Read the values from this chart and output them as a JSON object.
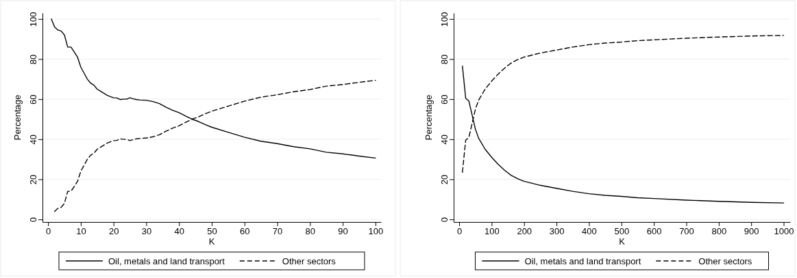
{
  "chart_data": [
    {
      "type": "line",
      "xlabel": "K",
      "ylabel": "Percentage",
      "xlim": [
        -1.7,
        101.7
      ],
      "ylim": [
        -1.3,
        103
      ],
      "xticks": [
        0,
        10,
        20,
        30,
        40,
        50,
        60,
        70,
        80,
        90,
        100
      ],
      "yticks": [
        0,
        20,
        40,
        60,
        80,
        100
      ],
      "grid": "y",
      "legend": "bottom",
      "marker": "none",
      "series": [
        {
          "name": "Oil, metals and land transport",
          "color": "#000000",
          "line_style": "solid",
          "x": [
            1,
            2,
            3,
            4,
            5,
            6,
            7,
            8,
            9,
            10,
            11,
            12,
            13,
            14,
            15,
            16,
            17,
            18,
            19,
            20,
            21,
            22,
            23,
            24,
            25,
            26,
            27,
            28,
            30,
            32,
            34,
            36,
            38,
            40,
            42,
            44,
            46,
            48,
            50,
            55,
            60,
            65,
            70,
            75,
            80,
            85,
            90,
            95,
            100
          ],
          "values": [
            100,
            96,
            94.5,
            94,
            92,
            86,
            86,
            83.5,
            81,
            76,
            73,
            70,
            68,
            67,
            65,
            64,
            63,
            62,
            61.3,
            60.7,
            60.6,
            59.8,
            60,
            60,
            60.7,
            60.2,
            59.8,
            59.6,
            59.4,
            58.8,
            57.8,
            56,
            54.5,
            53.3,
            51.6,
            50,
            48.8,
            47.3,
            46,
            43.5,
            41,
            39,
            37.8,
            36.3,
            35.2,
            33.5,
            32.7,
            31.6,
            30.6
          ]
        },
        {
          "name": "Other sectors",
          "color": "#000000",
          "line_style": "dashed",
          "x": [
            2,
            3,
            4,
            5,
            6,
            7,
            8,
            9,
            10,
            11,
            12,
            13,
            14,
            15,
            16,
            17,
            18,
            19,
            20,
            21,
            22,
            23,
            24,
            25,
            26,
            27,
            28,
            30,
            32,
            34,
            36,
            38,
            40,
            42,
            44,
            46,
            48,
            50,
            55,
            60,
            65,
            70,
            75,
            80,
            85,
            90,
            95,
            100
          ],
          "values": [
            4,
            5.5,
            6,
            8,
            14,
            14,
            16.5,
            19,
            24,
            27,
            30,
            32,
            33,
            35,
            36,
            37,
            38,
            38.7,
            39.3,
            39.4,
            40.2,
            40,
            40,
            39.3,
            39.8,
            40.2,
            40.4,
            40.6,
            41.2,
            42.2,
            44,
            45.5,
            46.7,
            48.4,
            50,
            51.2,
            52.7,
            54,
            56.5,
            59,
            61,
            62.2,
            63.7,
            64.8,
            66.5,
            67.3,
            68.4,
            69.4
          ]
        }
      ]
    },
    {
      "type": "line",
      "xlabel": "K",
      "ylabel": "Percentage",
      "xlim": [
        -17,
        1020
      ],
      "ylim": [
        -1.3,
        103
      ],
      "xticks": [
        0,
        100,
        200,
        300,
        400,
        500,
        600,
        700,
        800,
        900,
        1000
      ],
      "yticks": [
        0,
        20,
        40,
        60,
        80,
        100
      ],
      "grid": "y",
      "legend": "bottom",
      "marker": "none",
      "series": [
        {
          "name": "Oil, metals and land transport",
          "color": "#000000",
          "line_style": "solid",
          "x": [
            10,
            20,
            30,
            40,
            50,
            60,
            80,
            100,
            120,
            140,
            160,
            180,
            200,
            250,
            300,
            350,
            400,
            450,
            500,
            550,
            600,
            700,
            800,
            900,
            1000
          ],
          "values": [
            76.5,
            60.5,
            59,
            52,
            45,
            40.5,
            35,
            31,
            27.5,
            24.5,
            22,
            20.3,
            19,
            17,
            15.5,
            14,
            12.8,
            12,
            11.5,
            10.8,
            10.4,
            9.6,
            9,
            8.5,
            8.2
          ]
        },
        {
          "name": "Other sectors",
          "color": "#000000",
          "line_style": "dashed",
          "x": [
            10,
            20,
            30,
            40,
            50,
            60,
            80,
            100,
            120,
            140,
            160,
            180,
            200,
            250,
            300,
            350,
            400,
            450,
            500,
            550,
            600,
            700,
            800,
            900,
            1000
          ],
          "values": [
            23.5,
            39.5,
            41,
            48,
            55,
            59.5,
            65,
            69,
            72.5,
            75.5,
            78,
            79.7,
            81,
            83,
            84.5,
            86,
            87.2,
            88,
            88.5,
            89.2,
            89.6,
            90.4,
            91,
            91.5,
            91.8
          ]
        }
      ]
    }
  ]
}
